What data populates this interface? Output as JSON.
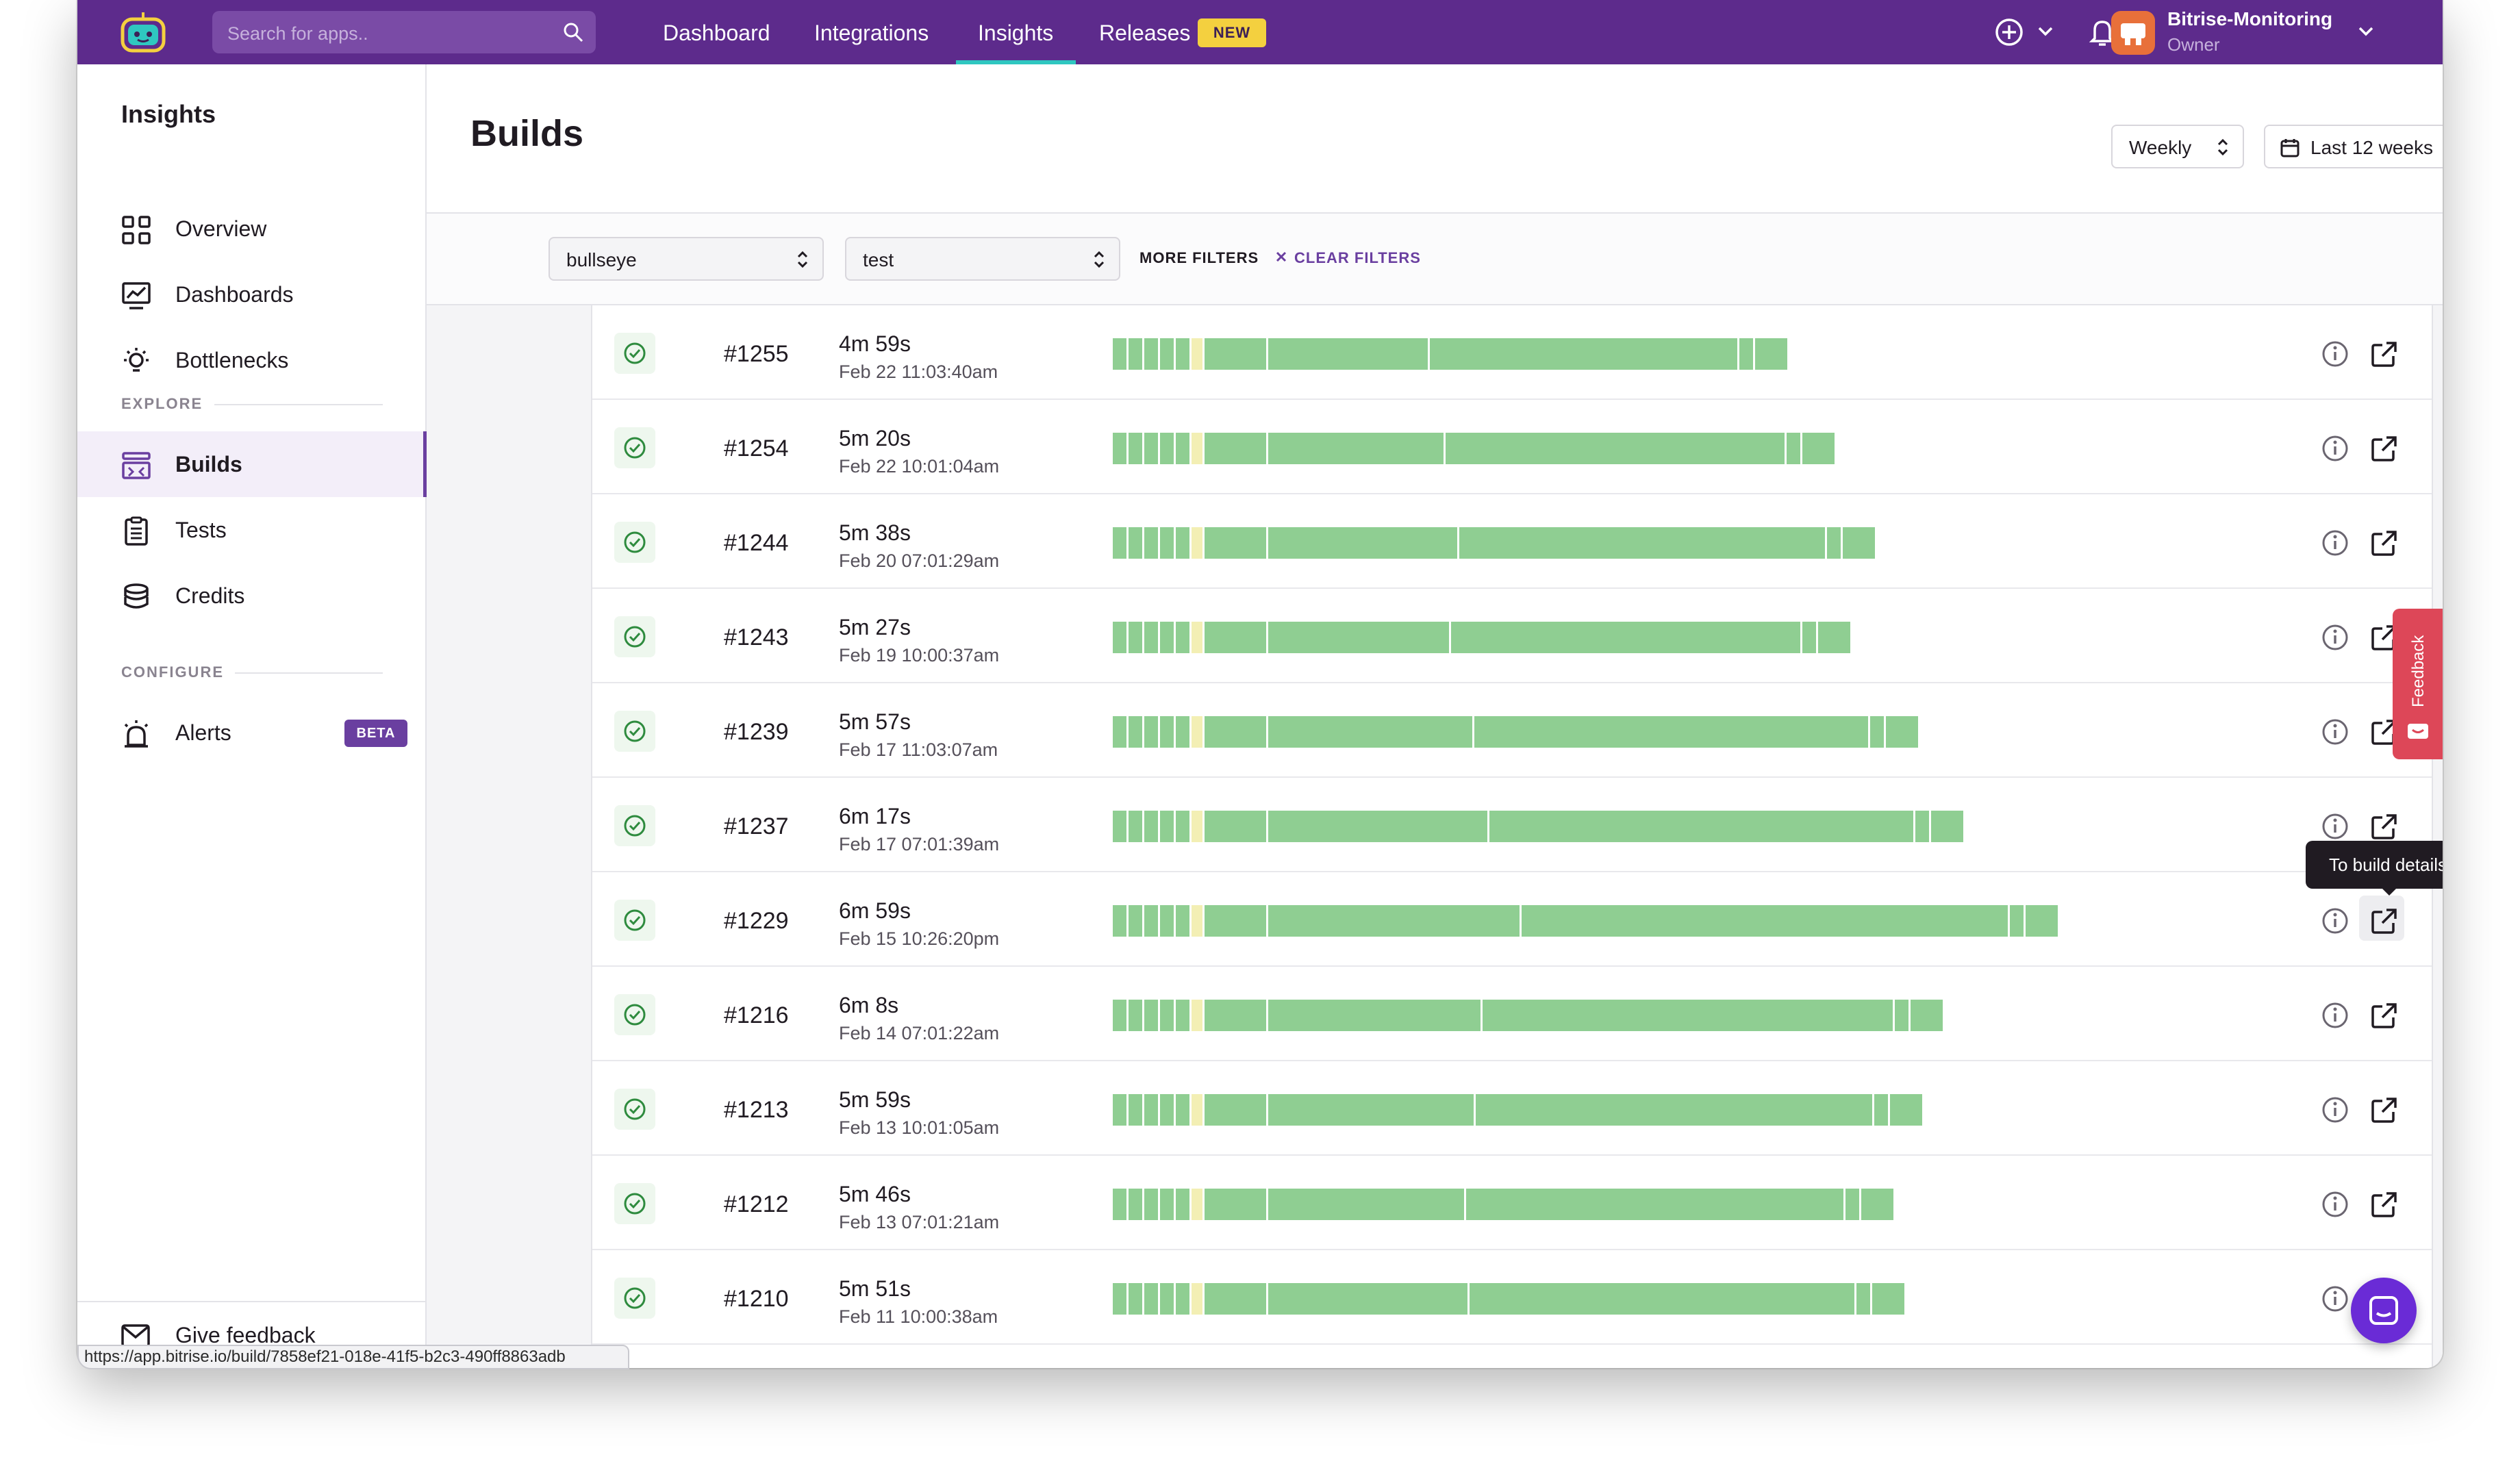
{
  "topbar": {
    "search_placeholder": "Search for apps..",
    "nav": [
      {
        "label": "Dashboard"
      },
      {
        "label": "Integrations"
      },
      {
        "label": "Insights"
      },
      {
        "label": "Releases"
      }
    ],
    "new_badge": "NEW",
    "org_name": "Bitrise-Monitoring",
    "org_role": "Owner",
    "active_nav": "Insights"
  },
  "sidebar": {
    "title": "Insights",
    "items_top": [
      {
        "label": "Overview",
        "icon": "grid-icon"
      },
      {
        "label": "Dashboards",
        "icon": "chart-icon"
      },
      {
        "label": "Bottlenecks",
        "icon": "lightbulb-icon"
      }
    ],
    "explore_label": "EXPLORE",
    "items_explore": [
      {
        "label": "Builds",
        "icon": "builds-icon",
        "active": true
      },
      {
        "label": "Tests",
        "icon": "clipboard-icon"
      },
      {
        "label": "Credits",
        "icon": "coins-icon"
      }
    ],
    "configure_label": "CONFIGURE",
    "alerts_label": "Alerts",
    "beta_badge": "BETA",
    "give_feedback": "Give feedback"
  },
  "main": {
    "title": "Builds",
    "interval": "Weekly",
    "range": "Last 12 weeks",
    "filter_app": "bullseye",
    "filter_workflow": "test",
    "more_filters": "MORE FILTERS",
    "clear_filters": "CLEAR FILTERS"
  },
  "builds": [
    {
      "number": "#1255",
      "duration": "4m 59s",
      "date": "Feb 22 11:03:40am",
      "seconds": 299
    },
    {
      "number": "#1254",
      "duration": "5m 20s",
      "date": "Feb 22 10:01:04am",
      "seconds": 320
    },
    {
      "number": "#1244",
      "duration": "5m 38s",
      "date": "Feb 20 07:01:29am",
      "seconds": 338
    },
    {
      "number": "#1243",
      "duration": "5m 27s",
      "date": "Feb 19 10:00:37am",
      "seconds": 327
    },
    {
      "number": "#1239",
      "duration": "5m 57s",
      "date": "Feb 17 11:03:07am",
      "seconds": 357
    },
    {
      "number": "#1237",
      "duration": "6m 17s",
      "date": "Feb 17 07:01:39am",
      "seconds": 377
    },
    {
      "number": "#1229",
      "duration": "6m 59s",
      "date": "Feb 15 10:26:20pm",
      "seconds": 419
    },
    {
      "number": "#1216",
      "duration": "6m 8s",
      "date": "Feb 14 07:01:22am",
      "seconds": 368
    },
    {
      "number": "#1213",
      "duration": "5m 59s",
      "date": "Feb 13 10:01:05am",
      "seconds": 359
    },
    {
      "number": "#1212",
      "duration": "5m 46s",
      "date": "Feb 13 07:01:21am",
      "seconds": 346
    },
    {
      "number": "#1210",
      "duration": "5m 51s",
      "date": "Feb 11 10:00:38am",
      "seconds": 351
    }
  ],
  "tooltip": "To build details",
  "feedback_tab": "Feedback",
  "status_url": "https://app.bitrise.io/build/7858ef21-018e-41f5-b2c3-490ff8863adb",
  "colors": {
    "brand": "#5d2b8c",
    "accent": "#6a3fa0",
    "step_success": "#8fce92",
    "step_skipped": "#f3efb4",
    "success": "#2e8b3e"
  }
}
